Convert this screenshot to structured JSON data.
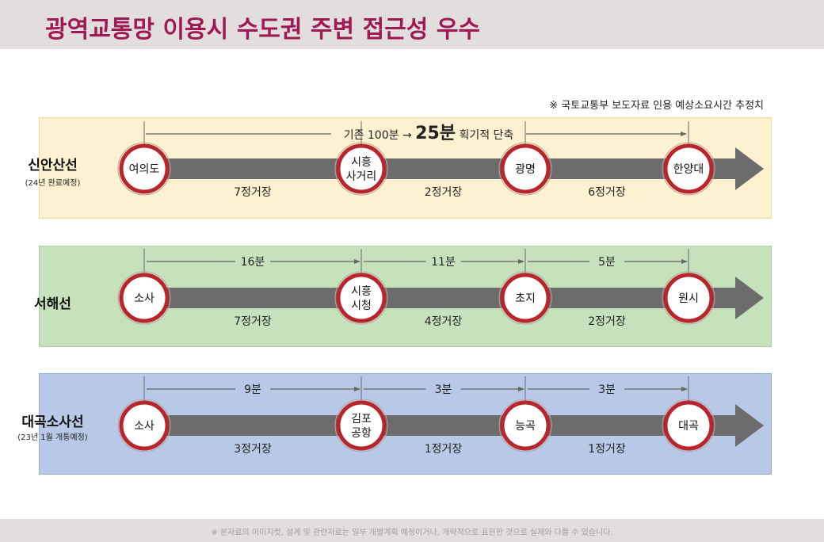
{
  "title": "광역교통망 이용시 수도권 주변 접근성 우수",
  "source_note": "※ 국토교통부 보도자료 인용 예상소요시간 추정치",
  "footer_note": "※ 본자료의 이미지컷, 설계 및 관련자료는 일부 개별계획 예정이거나, 개략적으로 표현한 것으로 실제와 다를 수 있습니다.",
  "lines": [
    {
      "name": "신안산선",
      "sub": "(24년 완료예정)",
      "stations": [
        [
          "여의도"
        ],
        [
          "시흥",
          "사거리"
        ],
        [
          "광명"
        ],
        [
          "한양대"
        ]
      ],
      "segments": [
        "7정거장",
        "2정거장",
        "6정거장"
      ],
      "time_prefix": "기존 100분 →",
      "time_highlight": "25분",
      "time_suffix": "획기적 단축"
    },
    {
      "name": "서해선",
      "sub": "",
      "stations": [
        [
          "소사"
        ],
        [
          "시흥",
          "시청"
        ],
        [
          "초지"
        ],
        [
          "원시"
        ]
      ],
      "segments": [
        "7정거장",
        "4정거장",
        "2정거장"
      ],
      "times": [
        "16분",
        "11분",
        "5분"
      ]
    },
    {
      "name": "대곡소사선",
      "sub": "(23년 1월 개통예정)",
      "stations": [
        [
          "소사"
        ],
        [
          "김포",
          "공항"
        ],
        [
          "능곡"
        ],
        [
          "대곡"
        ]
      ],
      "segments": [
        "3정거장",
        "1정거장",
        "1정거장"
      ],
      "times": [
        "9분",
        "3분",
        "3분"
      ]
    }
  ]
}
